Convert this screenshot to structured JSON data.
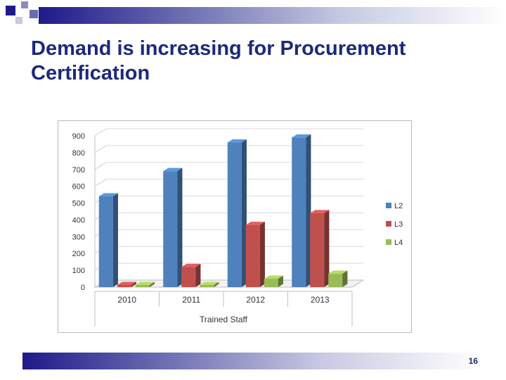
{
  "slide": {
    "title": "Demand is increasing for Procurement Certification",
    "page_number": "16"
  },
  "colors": {
    "accent": "#1b2a7a",
    "L2": "#4f81bd",
    "L3": "#c0504d",
    "L4": "#9bbb59"
  },
  "chart_data": {
    "type": "bar",
    "three_d": true,
    "categories": [
      "2010",
      "2011",
      "2012",
      "2013"
    ],
    "series": [
      {
        "name": "L2",
        "values": [
          540,
          690,
          860,
          890
        ]
      },
      {
        "name": "L3",
        "values": [
          0,
          120,
          370,
          440
        ]
      },
      {
        "name": "L4",
        "values": [
          0,
          0,
          50,
          80
        ]
      }
    ],
    "y_ticks": [
      "0",
      "100",
      "200",
      "300",
      "400",
      "500",
      "600",
      "700",
      "800",
      "900"
    ],
    "ylim": [
      0,
      900
    ],
    "xlabel": "Trained Staff",
    "ylabel": "",
    "grid": true,
    "legend": "right"
  }
}
